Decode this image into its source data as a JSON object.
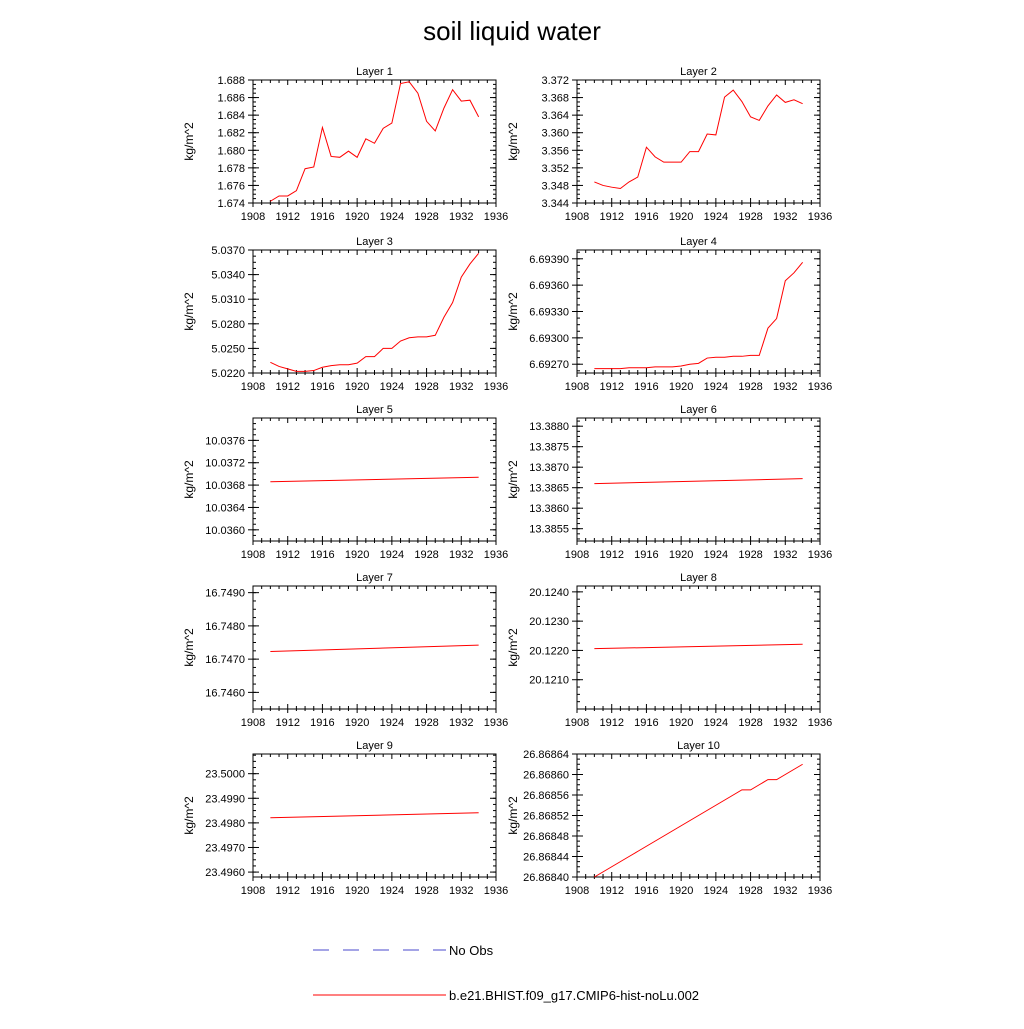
{
  "title": "soil liquid water",
  "legend": {
    "obs_label": "No Obs",
    "obs_color": "#4a4acc",
    "model_label": "b.e21.BHIST.f09_g17.CMIP6-hist-noLu.002",
    "model_color": "#ff0000"
  },
  "chart_data": [
    {
      "type": "line",
      "title": "Layer 1",
      "xlabel": "",
      "ylabel": "kg/m^2",
      "xlim": [
        1908,
        1936
      ],
      "ylim": [
        1.674,
        1.688
      ],
      "xticks": [
        "1908",
        "1912",
        "1916",
        "1920",
        "1924",
        "1928",
        "1932",
        "1936"
      ],
      "yticks": [
        "1.674",
        "1.676",
        "1.678",
        "1.680",
        "1.682",
        "1.684",
        "1.686",
        "1.688"
      ],
      "x": [
        1910,
        1911,
        1912,
        1913,
        1914,
        1915,
        1916,
        1917,
        1918,
        1919,
        1920,
        1921,
        1922,
        1923,
        1924,
        1925,
        1926,
        1927,
        1928,
        1929,
        1930,
        1931,
        1932,
        1933,
        1934
      ],
      "series": [
        {
          "name": "b.e21.BHIST.f09_g17.CMIP6-hist-noLu.002",
          "values": [
            1.6742,
            1.6748,
            1.6748,
            1.6754,
            1.6779,
            1.6781,
            1.6826,
            1.6793,
            1.6792,
            1.6799,
            1.6792,
            1.6813,
            1.6808,
            1.6825,
            1.6831,
            1.6876,
            1.6878,
            1.6865,
            1.6833,
            1.6822,
            1.6848,
            1.6869,
            1.6856,
            1.6857,
            1.6838
          ]
        }
      ]
    },
    {
      "type": "line",
      "title": "Layer 2",
      "xlabel": "",
      "ylabel": "kg/m^2",
      "xlim": [
        1908,
        1936
      ],
      "ylim": [
        3.344,
        3.372
      ],
      "xticks": [
        "1908",
        "1912",
        "1916",
        "1920",
        "1924",
        "1928",
        "1932",
        "1936"
      ],
      "yticks": [
        "3.344",
        "3.348",
        "3.352",
        "3.356",
        "3.360",
        "3.364",
        "3.368",
        "3.372"
      ],
      "x": [
        1910,
        1911,
        1912,
        1913,
        1914,
        1915,
        1916,
        1917,
        1918,
        1919,
        1920,
        1921,
        1922,
        1923,
        1924,
        1925,
        1926,
        1927,
        1928,
        1929,
        1930,
        1931,
        1932,
        1933,
        1934
      ],
      "series": [
        {
          "name": "b.e21.BHIST.f09_g17.CMIP6-hist-noLu.002",
          "values": [
            3.3488,
            3.348,
            3.3476,
            3.3473,
            3.3488,
            3.3499,
            3.3567,
            3.3545,
            3.3533,
            3.3533,
            3.3533,
            3.3557,
            3.3557,
            3.3597,
            3.3595,
            3.3681,
            3.3697,
            3.3671,
            3.3636,
            3.3628,
            3.3661,
            3.3686,
            3.3669,
            3.3675,
            3.3666
          ]
        }
      ]
    },
    {
      "type": "line",
      "title": "Layer 3",
      "xlabel": "",
      "ylabel": "kg/m^2",
      "xlim": [
        1908,
        1936
      ],
      "ylim": [
        5.022,
        5.037
      ],
      "xticks": [
        "1908",
        "1912",
        "1916",
        "1920",
        "1924",
        "1928",
        "1932",
        "1936"
      ],
      "yticks": [
        "5.0220",
        "5.0250",
        "5.0280",
        "5.0310",
        "5.0340",
        "5.0370"
      ],
      "x": [
        1910,
        1911,
        1912,
        1913,
        1914,
        1915,
        1916,
        1917,
        1918,
        1919,
        1920,
        1921,
        1922,
        1923,
        1924,
        1925,
        1926,
        1927,
        1928,
        1929,
        1930,
        1931,
        1932,
        1933,
        1934
      ],
      "series": [
        {
          "name": "b.e21.BHIST.f09_g17.CMIP6-hist-noLu.002",
          "values": [
            5.0233,
            5.0228,
            5.0225,
            5.0222,
            5.0222,
            5.0223,
            5.0227,
            5.0229,
            5.023,
            5.023,
            5.0232,
            5.024,
            5.024,
            5.025,
            5.025,
            5.0259,
            5.0263,
            5.0264,
            5.0264,
            5.0266,
            5.0288,
            5.0306,
            5.0337,
            5.0353,
            5.0366
          ]
        }
      ]
    },
    {
      "type": "line",
      "title": "Layer 4",
      "xlabel": "",
      "ylabel": "kg/m^2",
      "xlim": [
        1908,
        1936
      ],
      "ylim": [
        6.6926,
        6.694
      ],
      "xticks": [
        "1908",
        "1912",
        "1916",
        "1920",
        "1924",
        "1928",
        "1932",
        "1936"
      ],
      "yticks": [
        "6.69270",
        "6.69300",
        "6.69330",
        "6.69360",
        "6.69390"
      ],
      "x": [
        1910,
        1911,
        1912,
        1913,
        1914,
        1915,
        1916,
        1917,
        1918,
        1919,
        1920,
        1921,
        1922,
        1923,
        1924,
        1925,
        1926,
        1927,
        1928,
        1929,
        1930,
        1931,
        1932,
        1933,
        1934
      ],
      "series": [
        {
          "name": "b.e21.BHIST.f09_g17.CMIP6-hist-noLu.002",
          "values": [
            6.69265,
            6.69265,
            6.69265,
            6.69265,
            6.69266,
            6.69266,
            6.69266,
            6.69267,
            6.69267,
            6.69267,
            6.69268,
            6.6927,
            6.69271,
            6.69277,
            6.69278,
            6.69278,
            6.69279,
            6.69279,
            6.6928,
            6.6928,
            6.69311,
            6.69322,
            6.69365,
            6.69374,
            6.69386
          ]
        }
      ]
    },
    {
      "type": "line",
      "title": "Layer 5",
      "xlabel": "",
      "ylabel": "kg/m^2",
      "xlim": [
        1908,
        1936
      ],
      "ylim": [
        10.0358,
        10.038
      ],
      "xticks": [
        "1908",
        "1912",
        "1916",
        "1920",
        "1924",
        "1928",
        "1932",
        "1936"
      ],
      "yticks": [
        "10.0360",
        "10.0364",
        "10.0368",
        "10.0372",
        "10.0376"
      ],
      "x": [
        1910,
        1934
      ],
      "series": [
        {
          "name": "b.e21.BHIST.f09_g17.CMIP6-hist-noLu.002",
          "values": [
            10.03686,
            10.03694
          ]
        }
      ]
    },
    {
      "type": "line",
      "title": "Layer 6",
      "xlabel": "",
      "ylabel": "kg/m^2",
      "xlim": [
        1908,
        1936
      ],
      "ylim": [
        13.3852,
        13.3882
      ],
      "xticks": [
        "1908",
        "1912",
        "1916",
        "1920",
        "1924",
        "1928",
        "1932",
        "1936"
      ],
      "yticks": [
        "13.3855",
        "13.3860",
        "13.3865",
        "13.3870",
        "13.3875",
        "13.3880"
      ],
      "x": [
        1910,
        1934
      ],
      "series": [
        {
          "name": "b.e21.BHIST.f09_g17.CMIP6-hist-noLu.002",
          "values": [
            13.3866,
            13.38672
          ]
        }
      ]
    },
    {
      "type": "line",
      "title": "Layer 7",
      "xlabel": "",
      "ylabel": "kg/m^2",
      "xlim": [
        1908,
        1936
      ],
      "ylim": [
        16.7455,
        16.7492
      ],
      "xticks": [
        "1908",
        "1912",
        "1916",
        "1920",
        "1924",
        "1928",
        "1932",
        "1936"
      ],
      "yticks": [
        "16.7460",
        "16.7470",
        "16.7480",
        "16.7490"
      ],
      "x": [
        1910,
        1934
      ],
      "series": [
        {
          "name": "b.e21.BHIST.f09_g17.CMIP6-hist-noLu.002",
          "values": [
            16.74723,
            16.74742
          ]
        }
      ]
    },
    {
      "type": "line",
      "title": "Layer 8",
      "xlabel": "",
      "ylabel": "kg/m^2",
      "xlim": [
        1908,
        1936
      ],
      "ylim": [
        20.12,
        20.1242
      ],
      "xticks": [
        "1908",
        "1912",
        "1916",
        "1920",
        "1924",
        "1928",
        "1932",
        "1936"
      ],
      "yticks": [
        "20.1210",
        "20.1220",
        "20.1230",
        "20.1240"
      ],
      "x": [
        1910,
        1934
      ],
      "series": [
        {
          "name": "b.e21.BHIST.f09_g17.CMIP6-hist-noLu.002",
          "values": [
            20.12206,
            20.12221
          ]
        }
      ]
    },
    {
      "type": "line",
      "title": "Layer 9",
      "xlabel": "",
      "ylabel": "kg/m^2",
      "xlim": [
        1908,
        1936
      ],
      "ylim": [
        23.4958,
        23.5008
      ],
      "xticks": [
        "1908",
        "1912",
        "1916",
        "1920",
        "1924",
        "1928",
        "1932",
        "1936"
      ],
      "yticks": [
        "23.4960",
        "23.4970",
        "23.4980",
        "23.4990",
        "23.5000"
      ],
      "x": [
        1910,
        1934
      ],
      "series": [
        {
          "name": "b.e21.BHIST.f09_g17.CMIP6-hist-noLu.002",
          "values": [
            23.49821,
            23.49841
          ]
        }
      ]
    },
    {
      "type": "line",
      "title": "Layer 10",
      "xlabel": "",
      "ylabel": "kg/m^2",
      "xlim": [
        1908,
        1936
      ],
      "ylim": [
        26.8684,
        26.86864
      ],
      "xticks": [
        "1908",
        "1912",
        "1916",
        "1920",
        "1924",
        "1928",
        "1932",
        "1936"
      ],
      "yticks": [
        "26.86840",
        "26.86844",
        "26.86848",
        "26.86852",
        "26.86856",
        "26.86860",
        "26.86864"
      ],
      "x": [
        1910,
        1911,
        1912,
        1913,
        1914,
        1915,
        1916,
        1917,
        1918,
        1919,
        1920,
        1921,
        1922,
        1923,
        1924,
        1925,
        1926,
        1927,
        1928,
        1929,
        1930,
        1931,
        1932,
        1933,
        1934
      ],
      "series": [
        {
          "name": "b.e21.BHIST.f09_g17.CMIP6-hist-noLu.002",
          "values": [
            26.8684,
            26.86841,
            26.86842,
            26.86843,
            26.86844,
            26.86845,
            26.86846,
            26.86847,
            26.86848,
            26.86849,
            26.8685,
            26.86851,
            26.86852,
            26.86853,
            26.86854,
            26.86855,
            26.86856,
            26.86857,
            26.86857,
            26.86858,
            26.86859,
            26.86859,
            26.8686,
            26.86861,
            26.86862
          ]
        }
      ]
    }
  ]
}
